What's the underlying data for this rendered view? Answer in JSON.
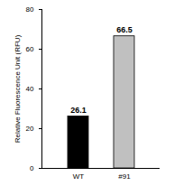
{
  "chart_data": {
    "type": "bar",
    "categories": [
      "WT",
      "#91"
    ],
    "values": [
      26.1,
      66.5
    ],
    "colors": [
      "#000000",
      "#c0c0c0"
    ],
    "ylabel": "Relative Fluorescence Unit (RFU)",
    "ylim": [
      0,
      80
    ],
    "yticks": [
      0,
      20,
      40,
      60,
      80
    ],
    "data_labels": true,
    "grid": false
  }
}
